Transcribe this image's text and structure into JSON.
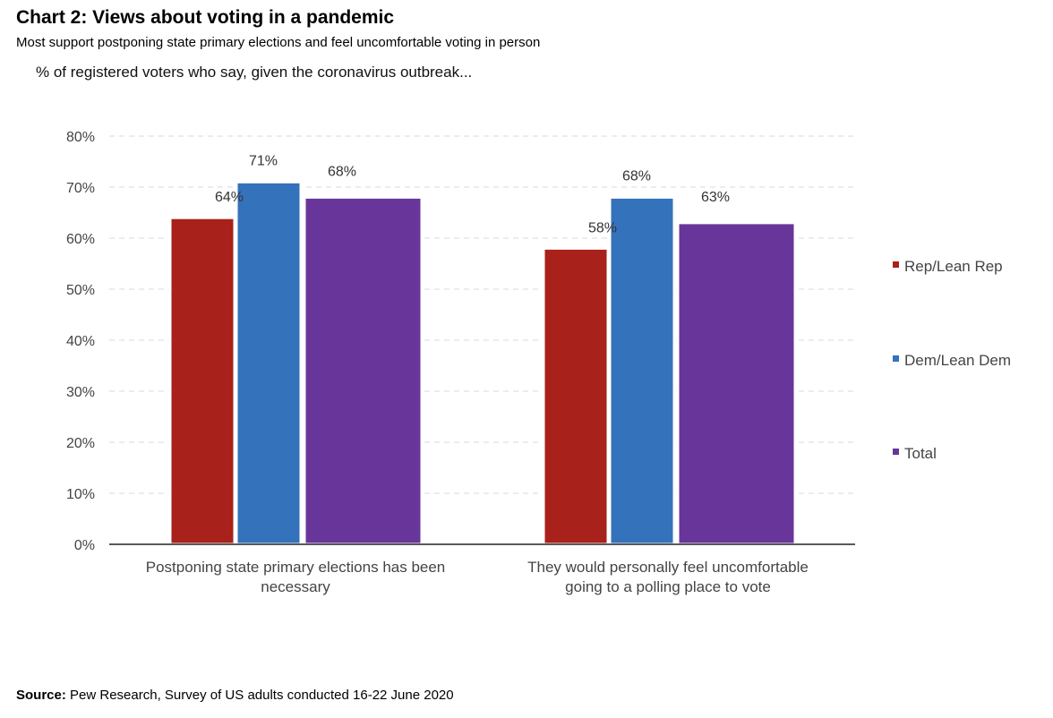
{
  "title": "Chart 2: Views about voting in a pandemic",
  "subtitle": "Most support postponing state primary elections and feel uncomfortable voting in person",
  "note": "% of registered voters who say, given the coronavirus outbreak...",
  "source": {
    "label": "Source:",
    "text": " Pew Research, Survey of US adults conducted 16-22 June 2020"
  },
  "chart_data": {
    "type": "bar",
    "categories": [
      [
        "Postponing state primary elections has been",
        "necessary"
      ],
      [
        "They would personally feel uncomfortable",
        "going to a polling place to vote"
      ]
    ],
    "series": [
      {
        "name": "Rep/Lean Rep",
        "color": "#a8211a",
        "values": [
          64,
          58
        ]
      },
      {
        "name": "Dem/Lean Dem",
        "color": "#3472bb",
        "values": [
          71,
          68
        ]
      },
      {
        "name": "Total",
        "color": "#68369a",
        "values": [
          68,
          63
        ]
      }
    ],
    "ylim": [
      0,
      80
    ],
    "yticks": [
      "0%",
      "10%",
      "20%",
      "30%",
      "40%",
      "50%",
      "60%",
      "70%",
      "80%"
    ],
    "value_suffix": "%",
    "grid": true,
    "legend_position": "right"
  }
}
